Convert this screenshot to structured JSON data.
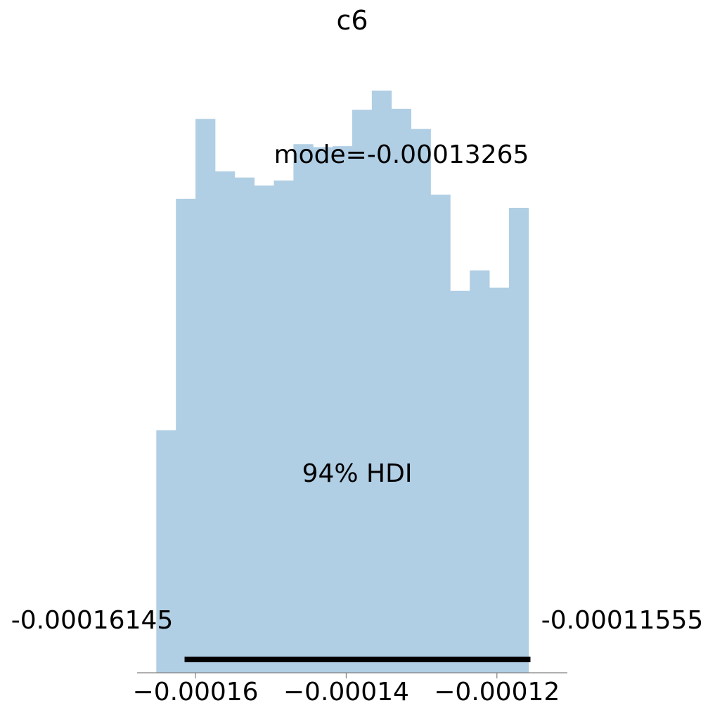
{
  "chart_data": {
    "type": "bar",
    "title": "c6",
    "xlabel": "",
    "ylabel": "",
    "bin_start": -0.0001652,
    "bin_width": 2.6e-06,
    "counts": [
      24,
      46.9,
      54.8,
      49.6,
      49,
      48.2,
      48.7,
      52.3,
      52,
      52.1,
      55.7,
      57.6,
      55.8,
      53.8,
      47.3,
      37.8,
      39.8,
      38.1,
      46
    ],
    "extra_bins": [
      24.8
    ],
    "xlim": [
      -0.00016775,
      -0.00011065
    ],
    "xticks": [
      -0.00016,
      -0.00014,
      -0.00012
    ],
    "xtick_labels": [
      "−0.00016",
      "−0.00014",
      "−0.00012"
    ],
    "ylim": [
      0,
      60.1
    ],
    "hdi": {
      "label": "94% HDI",
      "low": -0.00016145,
      "high": -0.00011555,
      "low_label": "-0.00016145",
      "high_label": "-0.00011555"
    },
    "mode_label": "mode=-0.00013265",
    "colors": {
      "bars": "#b0cee4",
      "hdi_line": "#000000",
      "axis": "#808080"
    },
    "grid": false,
    "legend": "none"
  }
}
